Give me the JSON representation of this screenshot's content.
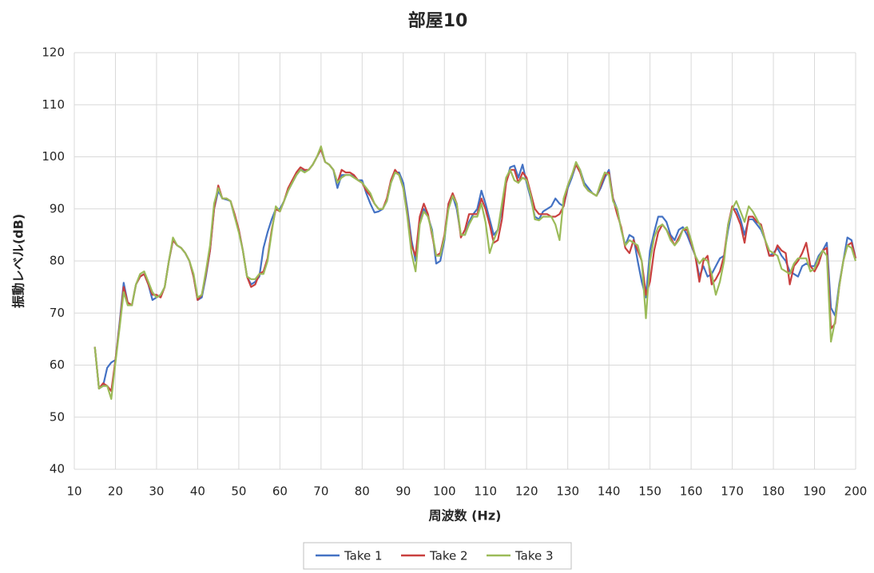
{
  "chart_data": {
    "type": "line",
    "title": "部屋10",
    "x_label": "周波数 (Hz)",
    "y_label": "振動レベル(dB)",
    "x": [
      15,
      16,
      17,
      18,
      19,
      20,
      21,
      22,
      23,
      24,
      25,
      26,
      27,
      28,
      29,
      30,
      31,
      32,
      33,
      34,
      35,
      36,
      37,
      38,
      39,
      40,
      41,
      42,
      43,
      44,
      45,
      46,
      47,
      48,
      49,
      50,
      51,
      52,
      53,
      54,
      55,
      56,
      57,
      58,
      59,
      60,
      61,
      62,
      63,
      64,
      65,
      66,
      67,
      68,
      69,
      70,
      71,
      72,
      73,
      74,
      75,
      76,
      77,
      78,
      79,
      80,
      81,
      82,
      83,
      84,
      85,
      86,
      87,
      88,
      89,
      90,
      91,
      92,
      93,
      94,
      95,
      96,
      97,
      98,
      99,
      100,
      101,
      102,
      103,
      104,
      105,
      106,
      107,
      108,
      109,
      110,
      111,
      112,
      113,
      114,
      115,
      116,
      117,
      118,
      119,
      120,
      121,
      122,
      123,
      124,
      125,
      126,
      127,
      128,
      129,
      130,
      131,
      132,
      133,
      134,
      135,
      136,
      137,
      138,
      139,
      140,
      141,
      142,
      143,
      144,
      145,
      146,
      147,
      148,
      149,
      150,
      151,
      152,
      153,
      154,
      155,
      156,
      157,
      158,
      159,
      160,
      161,
      162,
      163,
      164,
      165,
      166,
      167,
      168,
      169,
      170,
      171,
      172,
      173,
      174,
      175,
      176,
      177,
      178,
      179,
      180,
      181,
      182,
      183,
      184,
      185,
      186,
      187,
      188,
      189,
      190,
      191,
      192,
      193,
      194,
      195,
      196,
      197,
      198,
      199,
      200
    ],
    "series": [
      {
        "name": "Take 1",
        "color": "#4472c4",
        "values": [
          63.5,
          55.5,
          56,
          59.5,
          60.5,
          61,
          68,
          75.8,
          72,
          71.5,
          75.5,
          77,
          77.5,
          75.5,
          72.5,
          73,
          73.5,
          75,
          80,
          84,
          83,
          82.5,
          81.5,
          80,
          77,
          72.5,
          73,
          77,
          82,
          90,
          93.5,
          92,
          91.8,
          91.5,
          88.5,
          86,
          82,
          77,
          75.5,
          76,
          77,
          82.5,
          85.5,
          88,
          90,
          90,
          91.5,
          93.5,
          95,
          96.5,
          97.5,
          97.3,
          97.5,
          98.5,
          100,
          101.5,
          99,
          98.5,
          97.5,
          94,
          96.5,
          96.5,
          96.5,
          96.3,
          95.5,
          95.5,
          93,
          91,
          89.3,
          89.5,
          90,
          91.5,
          95,
          97,
          97,
          95,
          90,
          84,
          80,
          88,
          90,
          88.5,
          86,
          79.5,
          80,
          84,
          91,
          92.5,
          90,
          85,
          85,
          87.5,
          89,
          90,
          93.5,
          91,
          88,
          85,
          86,
          90,
          95,
          98,
          98.3,
          96,
          98.5,
          95,
          92,
          88.5,
          88,
          89.5,
          90,
          90.5,
          92,
          91,
          90.5,
          94,
          96,
          98.5,
          97.5,
          95,
          94,
          93,
          92.5,
          94,
          96,
          97.5,
          92,
          90,
          86,
          83,
          85,
          84.5,
          80,
          76,
          73,
          82,
          85.5,
          88.5,
          88.5,
          87.5,
          85,
          84,
          86,
          86.5,
          85,
          83,
          81,
          77,
          79,
          77,
          77.5,
          79,
          80.5,
          81,
          86,
          90,
          90,
          88,
          85,
          88,
          88,
          87,
          86,
          84,
          81,
          81.5,
          82.5,
          81,
          80,
          78,
          77.5,
          77,
          79,
          79.5,
          79,
          79,
          81,
          82,
          83.5,
          71,
          69.5,
          75.5,
          80,
          84.5,
          84,
          80.5
        ]
      },
      {
        "name": "Take 2",
        "color": "#c9403f",
        "values": [
          63.5,
          55.5,
          56.5,
          56,
          55,
          61,
          67.5,
          75,
          72,
          71.5,
          75.5,
          77,
          77.5,
          75.5,
          73.5,
          73.5,
          73,
          75,
          80,
          84,
          83,
          82.5,
          81.5,
          80,
          77,
          72.5,
          73.5,
          77.5,
          82,
          90,
          94.5,
          92,
          92,
          91.5,
          89,
          86,
          82,
          77,
          75,
          75.5,
          77.5,
          78,
          80.5,
          86,
          90,
          89.5,
          91.5,
          94,
          95.5,
          97,
          98,
          97.5,
          97.5,
          98.5,
          100,
          101.5,
          99,
          98.5,
          97.5,
          95,
          97.5,
          97,
          97,
          96.5,
          95.5,
          95,
          93.5,
          92.5,
          91,
          90,
          90,
          92,
          95.5,
          97.5,
          96.5,
          94,
          89,
          83,
          81,
          88.5,
          91,
          89,
          85,
          81,
          81.5,
          85,
          91,
          93,
          91,
          84.5,
          86,
          89,
          89,
          89,
          92,
          90,
          87,
          83.5,
          84,
          88,
          95,
          97.5,
          97.5,
          95,
          97,
          96,
          93,
          90,
          89,
          89,
          89,
          88.5,
          88.5,
          89,
          90.5,
          94.5,
          96.5,
          98.5,
          97,
          94.5,
          93.5,
          93,
          92.5,
          94.5,
          96.5,
          97,
          92,
          89,
          86.5,
          82.5,
          81.5,
          84,
          82,
          80,
          73.5,
          76,
          82,
          85.5,
          87,
          86,
          84.5,
          83,
          84.5,
          86,
          86,
          83.5,
          81,
          76,
          80,
          81,
          75.5,
          76.5,
          78,
          81,
          87,
          90.5,
          89,
          87,
          83.5,
          88.5,
          88.5,
          87.5,
          87,
          84,
          81,
          81,
          83,
          82,
          81.5,
          75.5,
          79,
          80,
          81.5,
          83.5,
          79,
          78,
          79.5,
          82,
          82.5,
          67,
          68,
          75,
          80,
          83,
          83.5,
          80.5
        ]
      },
      {
        "name": "Take 3",
        "color": "#9bbb59",
        "values": [
          63.5,
          55.5,
          56,
          56,
          53.5,
          60.5,
          67,
          74,
          71.5,
          71.5,
          75.5,
          77.5,
          78,
          76,
          74,
          73,
          73.5,
          75,
          80,
          84.5,
          83,
          82.5,
          81.5,
          80,
          77.5,
          73,
          73.5,
          78,
          83,
          91,
          94,
          92,
          92,
          91.5,
          88.5,
          85.5,
          82,
          77,
          76.5,
          76.5,
          77.5,
          77.5,
          80,
          85.5,
          90.5,
          89.5,
          91.5,
          93.5,
          95,
          96.5,
          97.5,
          97,
          97.5,
          98.5,
          100,
          102,
          99,
          98.5,
          97.5,
          95,
          96,
          96.5,
          96.5,
          96,
          95.5,
          95,
          94,
          93,
          91,
          90,
          90,
          91.5,
          95,
          97,
          96.5,
          94,
          88.5,
          81.5,
          78,
          87,
          89.5,
          88.5,
          85.5,
          81,
          81,
          84.5,
          90,
          92.5,
          91,
          85,
          85,
          87,
          88.5,
          88.5,
          91,
          87.5,
          81.5,
          84,
          86,
          91,
          96,
          97.5,
          95.5,
          95,
          96,
          95.5,
          92.5,
          88,
          87.8,
          88.5,
          88.5,
          88.5,
          87,
          84,
          92,
          94.5,
          96.5,
          99,
          97.5,
          94.5,
          93.5,
          93,
          92.5,
          95,
          97,
          96.5,
          91.5,
          90,
          86,
          83,
          84,
          83.5,
          83,
          80,
          69,
          80,
          84.5,
          86.5,
          87,
          86,
          84,
          83,
          84,
          86,
          86.5,
          84,
          81,
          79.5,
          80.5,
          80,
          77.5,
          73.5,
          76,
          80,
          87,
          90,
          91.5,
          89.5,
          87.5,
          90.5,
          89.5,
          88,
          86.5,
          84,
          82,
          81.5,
          81,
          78.5,
          78,
          77.5,
          79.5,
          80.5,
          80.5,
          80.5,
          78,
          78.5,
          80.5,
          82,
          81,
          64.5,
          68.5,
          75,
          80,
          83,
          82.5,
          80
        ]
      }
    ],
    "xlim": [
      10,
      200
    ],
    "xticks": [
      10,
      20,
      30,
      40,
      50,
      60,
      70,
      80,
      90,
      100,
      110,
      120,
      130,
      140,
      150,
      160,
      170,
      180,
      190,
      200
    ],
    "ylim": [
      40,
      120
    ],
    "yticks": [
      40,
      50,
      60,
      70,
      80,
      90,
      100,
      110,
      120
    ],
    "grid": true,
    "legend": "bottom"
  }
}
